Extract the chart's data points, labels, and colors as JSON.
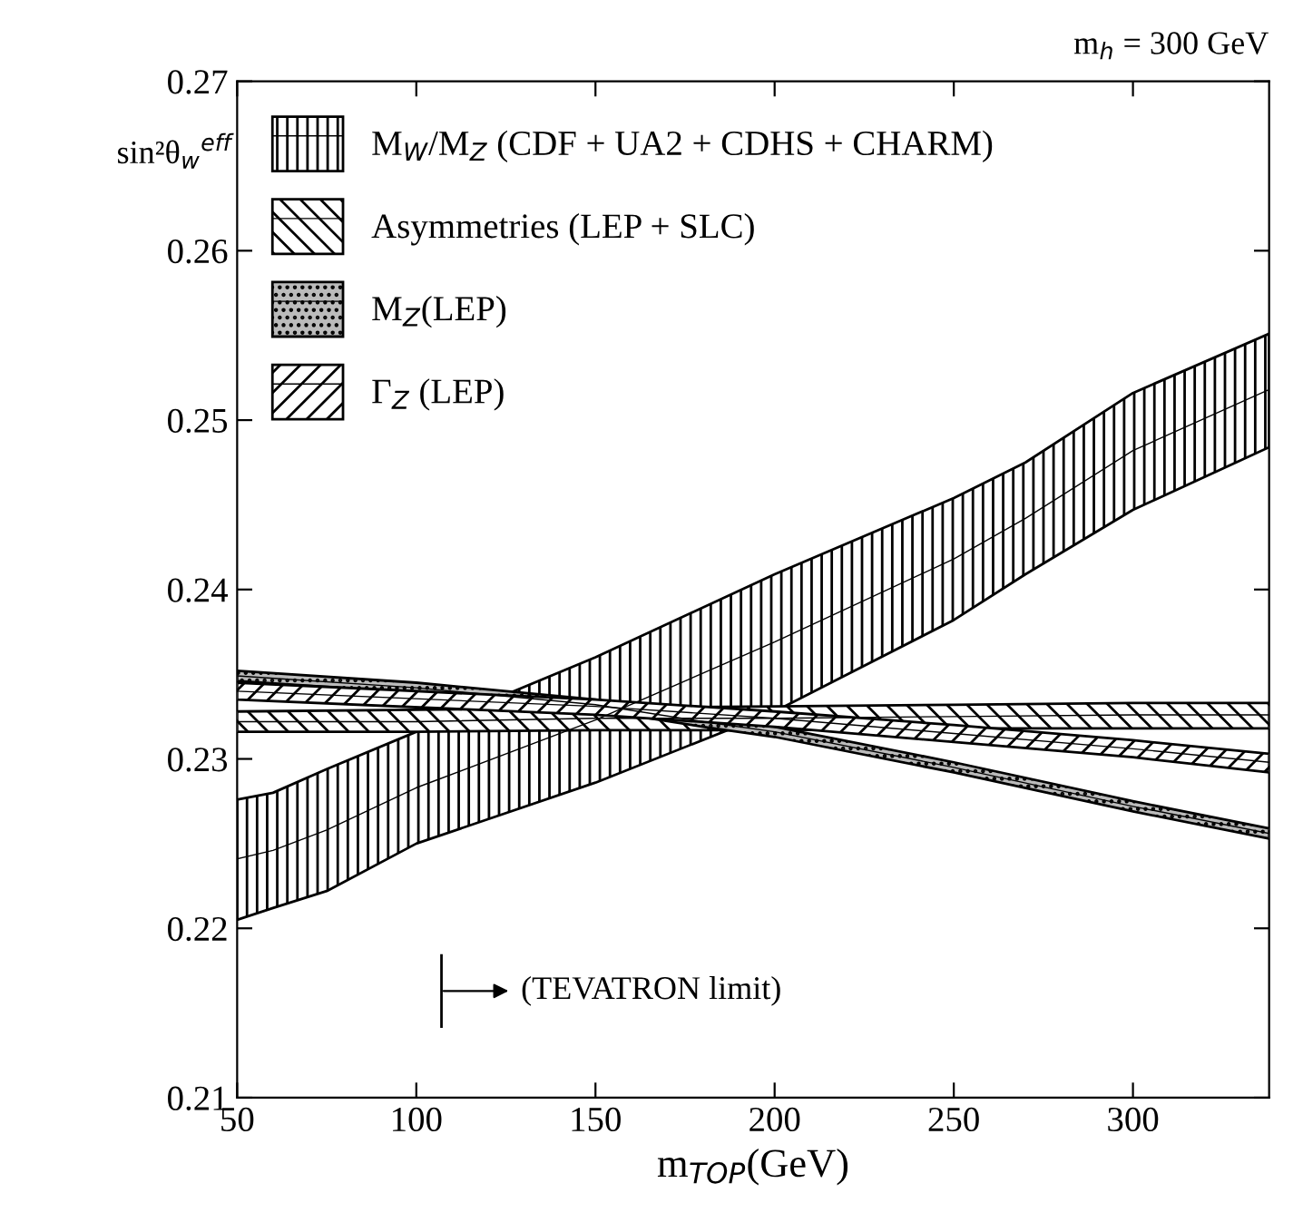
{
  "chart_data": {
    "type": "line",
    "xlabel": "m$_{TOP}$(GeV)",
    "ylabel": "sin²θ$_{w}$$^{eff}$",
    "annotations": [
      "m$_{h}$ = 300 GeV",
      "(TEVATRON limit)"
    ],
    "xlim": [
      50,
      338
    ],
    "ylim": [
      0.21,
      0.27
    ],
    "xticks": [
      50,
      100,
      150,
      200,
      250,
      300
    ],
    "yticks": [
      0.21,
      0.22,
      0.23,
      0.24,
      0.25,
      0.26,
      0.27
    ],
    "legend": "top left",
    "grid": false,
    "series": [
      {
        "name": "M$_{W}$/M$_{Z}$ (CDF + UA2 + CDHS + CHARM)",
        "color": "#000000",
        "x": [
          50,
          60,
          75,
          100,
          150,
          200,
          250,
          270,
          300,
          338
        ],
        "values": [
          0.2241,
          0.2246,
          0.2258,
          0.2283,
          0.2323,
          0.2369,
          0.2418,
          0.2442,
          0.2482,
          0.2518
        ],
        "lower": [
          0.2205,
          0.2212,
          0.2222,
          0.225,
          0.2286,
          0.2328,
          0.2382,
          0.2409,
          0.2447,
          0.2484
        ],
        "upper": [
          0.2276,
          0.228,
          0.2294,
          0.2316,
          0.236,
          0.2409,
          0.2454,
          0.2475,
          0.2516,
          0.2551
        ]
      },
      {
        "name": "Asymmetries (LEP + SLC)",
        "color": "#000000",
        "x": [
          50,
          100,
          150,
          200,
          250,
          300,
          338
        ],
        "values": [
          0.2322,
          0.2322,
          0.2324,
          0.2324,
          0.2325,
          0.2326,
          0.2326
        ],
        "lower": [
          0.2316,
          0.2316,
          0.2317,
          0.2317,
          0.2318,
          0.2318,
          0.2318
        ],
        "upper": [
          0.2328,
          0.2329,
          0.233,
          0.2331,
          0.2332,
          0.2333,
          0.2333
        ]
      },
      {
        "name": "M$_{Z}$(LEP)",
        "color": "#000000",
        "x": [
          50,
          100,
          150,
          180,
          200,
          250,
          300,
          338
        ],
        "values": [
          0.2349,
          0.2342,
          0.2332,
          0.2322,
          0.2316,
          0.2295,
          0.2272,
          0.2256
        ],
        "lower": [
          0.2346,
          0.2339,
          0.2329,
          0.2319,
          0.2313,
          0.2292,
          0.2269,
          0.2253
        ],
        "upper": [
          0.2352,
          0.2345,
          0.2335,
          0.2325,
          0.2319,
          0.2298,
          0.2275,
          0.2259
        ]
      },
      {
        "name": "Γ$_{Z}$ (LEP)",
        "color": "#000000",
        "x": [
          50,
          150,
          200,
          250,
          300,
          338
        ],
        "values": [
          0.234,
          0.2331,
          0.2324,
          0.2315,
          0.2306,
          0.2298
        ],
        "lower": [
          0.2335,
          0.2326,
          0.2319,
          0.231,
          0.2301,
          0.2292
        ],
        "upper": [
          0.2345,
          0.2335,
          0.2328,
          0.232,
          0.2311,
          0.2303
        ]
      }
    ]
  }
}
